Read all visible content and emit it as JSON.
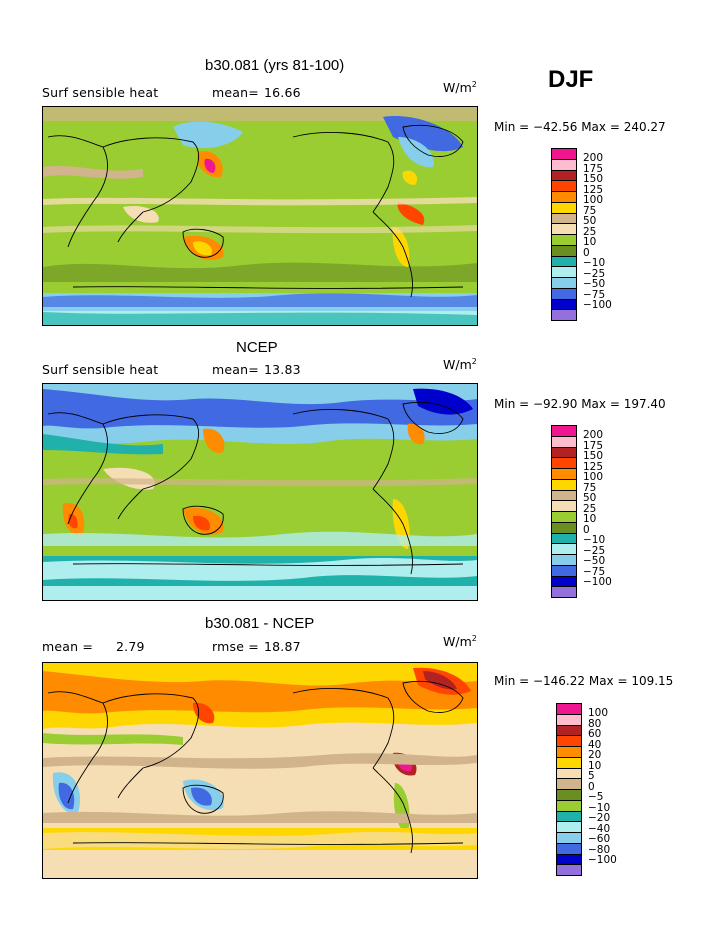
{
  "season": "DJF",
  "palettes": {
    "model": [
      "#f0168f",
      "#ffbccf",
      "#b22222",
      "#ff4500",
      "#ff8c00",
      "#ffd700",
      "#d2b48c",
      "#f5deb3",
      "#9acd32",
      "#6b8e23",
      "#20b2aa",
      "#afeeee",
      "#87ceeb",
      "#4169e1",
      "#0000cd",
      "#9370db"
    ],
    "diff": [
      "#f0168f",
      "#ffbccf",
      "#b22222",
      "#ff4500",
      "#ff8c00",
      "#ffd700",
      "#f5deb3",
      "#d2b48c",
      "#6b8e23",
      "#9acd32",
      "#20b2aa",
      "#afeeee",
      "#87ceeb",
      "#4169e1",
      "#0000cd",
      "#9370db"
    ]
  },
  "panels": [
    {
      "title": "b30.081 (yrs 81-100)",
      "left_label": "Surf sensible heat",
      "stat_label": "mean=",
      "stat_value": "16.66",
      "units_base": "W/m",
      "units_exp": "2",
      "min_max": "Min = −42.56 Max = 240.27",
      "colorbar_ticks": [
        "200",
        "175",
        "150",
        "125",
        "100",
        "75",
        "50",
        "25",
        "10",
        "0",
        "−10",
        "−25",
        "−50",
        "−75",
        "−100"
      ],
      "background": "#9acd32",
      "palette": "model"
    },
    {
      "title": "NCEP",
      "left_label": "Surf sensible heat",
      "stat_label": "mean=",
      "stat_value": "13.83",
      "units_base": "W/m",
      "units_exp": "2",
      "min_max": "Min = −92.90 Max = 197.40",
      "colorbar_ticks": [
        "200",
        "175",
        "150",
        "125",
        "100",
        "75",
        "50",
        "25",
        "10",
        "0",
        "−10",
        "−25",
        "−50",
        "−75",
        "−100"
      ],
      "background": "#9acd32",
      "palette": "model"
    },
    {
      "title": "b30.081 - NCEP",
      "left_label": "mean =",
      "left_value": "2.79",
      "stat_label": "rmse =",
      "stat_value": "18.87",
      "units_base": "W/m",
      "units_exp": "2",
      "min_max": "Min = −146.22 Max = 109.15",
      "colorbar_ticks": [
        "100",
        "80",
        "60",
        "40",
        "20",
        "10",
        "5",
        "0",
        "−5",
        "−10",
        "−20",
        "−40",
        "−60",
        "−80",
        "−100"
      ],
      "background": "#f5deb3",
      "palette": "diff"
    }
  ]
}
